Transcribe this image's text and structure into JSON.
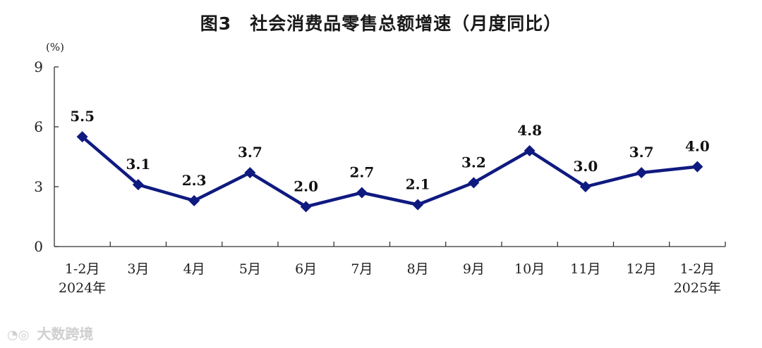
{
  "chart_data": {
    "type": "line",
    "title": "图3　社会消费品零售总额增速（月度同比）",
    "ylabel": "(%)",
    "xlabel": "",
    "ylim": [
      0,
      9
    ],
    "yticks": [
      "0",
      "3",
      "6",
      "9"
    ],
    "grid": false,
    "categories": [
      [
        "1-2月",
        "2024年"
      ],
      [
        "3月"
      ],
      [
        "4月"
      ],
      [
        "5月"
      ],
      [
        "6月"
      ],
      [
        "7月"
      ],
      [
        "8月"
      ],
      [
        "9月"
      ],
      [
        "10月"
      ],
      [
        "11月"
      ],
      [
        "12月"
      ],
      [
        "1-2月",
        "2025年"
      ]
    ],
    "series": [
      {
        "values": [
          5.5,
          3.1,
          2.3,
          3.7,
          2.0,
          2.7,
          2.1,
          3.2,
          4.8,
          3.0,
          3.7,
          4.0
        ],
        "labels": [
          "5.5",
          "3.1",
          "2.3",
          "3.7",
          "2.0",
          "2.7",
          "2.1",
          "3.2",
          "4.8",
          "3.0",
          "3.7",
          "4.0"
        ],
        "color": "#0f1a80",
        "marker": "diamond"
      }
    ]
  },
  "watermark": {
    "text": "大数跨境"
  }
}
